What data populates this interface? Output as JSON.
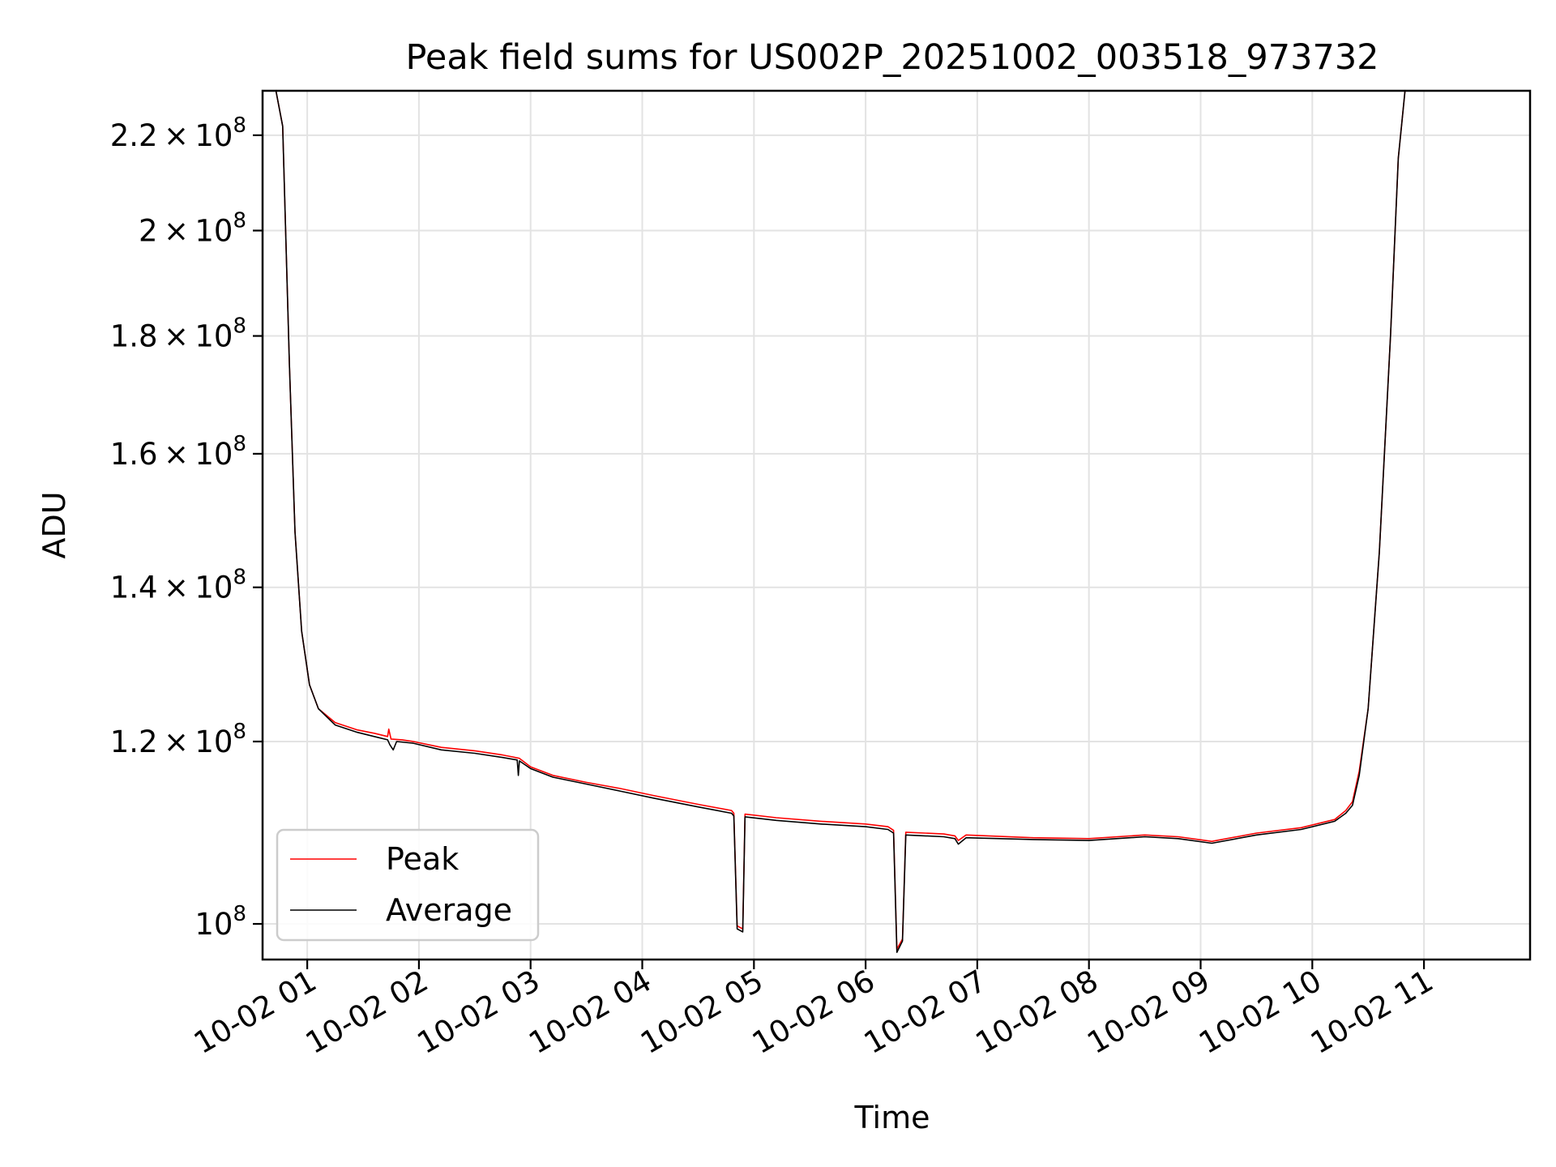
{
  "chart_data": {
    "type": "line",
    "title": "Peak field sums for US002P_20251002_003518_973732",
    "xlabel": "Time",
    "ylabel": "ADU",
    "y_scale": "log",
    "x_unit": "hours after 10-02 00:00",
    "xlim": [
      0.6,
      11.95
    ],
    "ylim": [
      96500000,
      230000000
    ],
    "grid": true,
    "legend_position": "lower-left",
    "x_ticks": [
      {
        "x": 1,
        "label": "10-02 01"
      },
      {
        "x": 2,
        "label": "10-02 02"
      },
      {
        "x": 3,
        "label": "10-02 03"
      },
      {
        "x": 4,
        "label": "10-02 04"
      },
      {
        "x": 5,
        "label": "10-02 05"
      },
      {
        "x": 6,
        "label": "10-02 06"
      },
      {
        "x": 7,
        "label": "10-02 07"
      },
      {
        "x": 8,
        "label": "10-02 08"
      },
      {
        "x": 9,
        "label": "10-02 09"
      },
      {
        "x": 10,
        "label": "10-02 10"
      },
      {
        "x": 11,
        "label": "10-02 11"
      }
    ],
    "y_ticks": [
      {
        "y": 100000000,
        "mant": "",
        "exp": "8"
      },
      {
        "y": 120000000,
        "mant": "1.2",
        "exp": "8"
      },
      {
        "y": 140000000,
        "mant": "1.4",
        "exp": "8"
      },
      {
        "y": 160000000,
        "mant": "1.6",
        "exp": "8"
      },
      {
        "y": 180000000,
        "mant": "1.8",
        "exp": "8"
      },
      {
        "y": 200000000,
        "mant": "2",
        "exp": "8"
      },
      {
        "y": 220000000,
        "mant": "2.2",
        "exp": "8"
      }
    ],
    "series": [
      {
        "name": "Peak",
        "color": "#ff0000",
        "points": [
          [
            0.6,
            230000000
          ],
          [
            0.72,
            230000000
          ],
          [
            0.78,
            222000000
          ],
          [
            0.84,
            175000000
          ],
          [
            0.89,
            148000000
          ],
          [
            0.95,
            134000000
          ],
          [
            1.02,
            127000000
          ],
          [
            1.1,
            124000000
          ],
          [
            1.25,
            122300000
          ],
          [
            1.45,
            121400000
          ],
          [
            1.6,
            121000000
          ],
          [
            1.72,
            120600000
          ],
          [
            1.73,
            121500000
          ],
          [
            1.75,
            120300000
          ],
          [
            1.85,
            120200000
          ],
          [
            1.95,
            120000000
          ],
          [
            2.2,
            119300000
          ],
          [
            2.5,
            118900000
          ],
          [
            2.75,
            118400000
          ],
          [
            2.9,
            118000000
          ],
          [
            3.0,
            117000000
          ],
          [
            3.2,
            116000000
          ],
          [
            3.5,
            115200000
          ],
          [
            3.8,
            114500000
          ],
          [
            4.1,
            113700000
          ],
          [
            4.5,
            112700000
          ],
          [
            4.8,
            112000000
          ],
          [
            4.82,
            111700000
          ],
          [
            4.85,
            99800000
          ],
          [
            4.9,
            99500000
          ],
          [
            4.92,
            111600000
          ],
          [
            5.2,
            111200000
          ],
          [
            5.6,
            110800000
          ],
          [
            6.0,
            110500000
          ],
          [
            6.2,
            110200000
          ],
          [
            6.25,
            109800000
          ],
          [
            6.28,
            97500000
          ],
          [
            6.33,
            98500000
          ],
          [
            6.36,
            109600000
          ],
          [
            6.7,
            109400000
          ],
          [
            6.8,
            109200000
          ],
          [
            6.83,
            108700000
          ],
          [
            6.9,
            109300000
          ],
          [
            7.5,
            109000000
          ],
          [
            8.0,
            108900000
          ],
          [
            8.5,
            109300000
          ],
          [
            8.8,
            109100000
          ],
          [
            9.1,
            108600000
          ],
          [
            9.5,
            109500000
          ],
          [
            9.9,
            110100000
          ],
          [
            10.2,
            111000000
          ],
          [
            10.3,
            112000000
          ],
          [
            10.36,
            113000000
          ],
          [
            10.42,
            116500000
          ],
          [
            10.5,
            124000000
          ],
          [
            10.6,
            145000000
          ],
          [
            10.7,
            180000000
          ],
          [
            10.77,
            215000000
          ],
          [
            10.83,
            230000000
          ],
          [
            11.95,
            230000000
          ]
        ]
      },
      {
        "name": "Average",
        "color": "#000000",
        "points": [
          [
            0.6,
            230000000
          ],
          [
            0.72,
            230000000
          ],
          [
            0.78,
            222000000
          ],
          [
            0.84,
            175000000
          ],
          [
            0.89,
            148000000
          ],
          [
            0.95,
            134000000
          ],
          [
            1.02,
            127000000
          ],
          [
            1.1,
            124000000
          ],
          [
            1.25,
            122000000
          ],
          [
            1.45,
            121100000
          ],
          [
            1.6,
            120600000
          ],
          [
            1.72,
            120200000
          ],
          [
            1.74,
            119600000
          ],
          [
            1.77,
            119000000
          ],
          [
            1.8,
            120000000
          ],
          [
            1.95,
            119800000
          ],
          [
            2.2,
            119000000
          ],
          [
            2.5,
            118600000
          ],
          [
            2.75,
            118100000
          ],
          [
            2.88,
            117800000
          ],
          [
            2.89,
            116000000
          ],
          [
            2.9,
            117700000
          ],
          [
            3.0,
            116800000
          ],
          [
            3.2,
            115800000
          ],
          [
            3.5,
            115000000
          ],
          [
            3.8,
            114200000
          ],
          [
            4.1,
            113400000
          ],
          [
            4.5,
            112400000
          ],
          [
            4.8,
            111700000
          ],
          [
            4.82,
            111400000
          ],
          [
            4.85,
            99500000
          ],
          [
            4.9,
            99200000
          ],
          [
            4.92,
            111300000
          ],
          [
            5.2,
            110900000
          ],
          [
            5.6,
            110500000
          ],
          [
            6.0,
            110200000
          ],
          [
            6.2,
            109900000
          ],
          [
            6.25,
            109500000
          ],
          [
            6.28,
            97200000
          ],
          [
            6.33,
            98300000
          ],
          [
            6.36,
            109300000
          ],
          [
            6.7,
            109100000
          ],
          [
            6.8,
            108900000
          ],
          [
            6.83,
            108300000
          ],
          [
            6.9,
            109000000
          ],
          [
            7.5,
            108800000
          ],
          [
            8.0,
            108700000
          ],
          [
            8.5,
            109100000
          ],
          [
            8.8,
            108900000
          ],
          [
            9.1,
            108400000
          ],
          [
            9.5,
            109300000
          ],
          [
            9.9,
            109900000
          ],
          [
            10.2,
            110800000
          ],
          [
            10.3,
            111700000
          ],
          [
            10.36,
            112600000
          ],
          [
            10.42,
            116000000
          ],
          [
            10.5,
            124000000
          ],
          [
            10.6,
            145000000
          ],
          [
            10.7,
            180000000
          ],
          [
            10.77,
            215000000
          ],
          [
            10.83,
            230000000
          ],
          [
            11.95,
            230000000
          ]
        ]
      }
    ]
  }
}
